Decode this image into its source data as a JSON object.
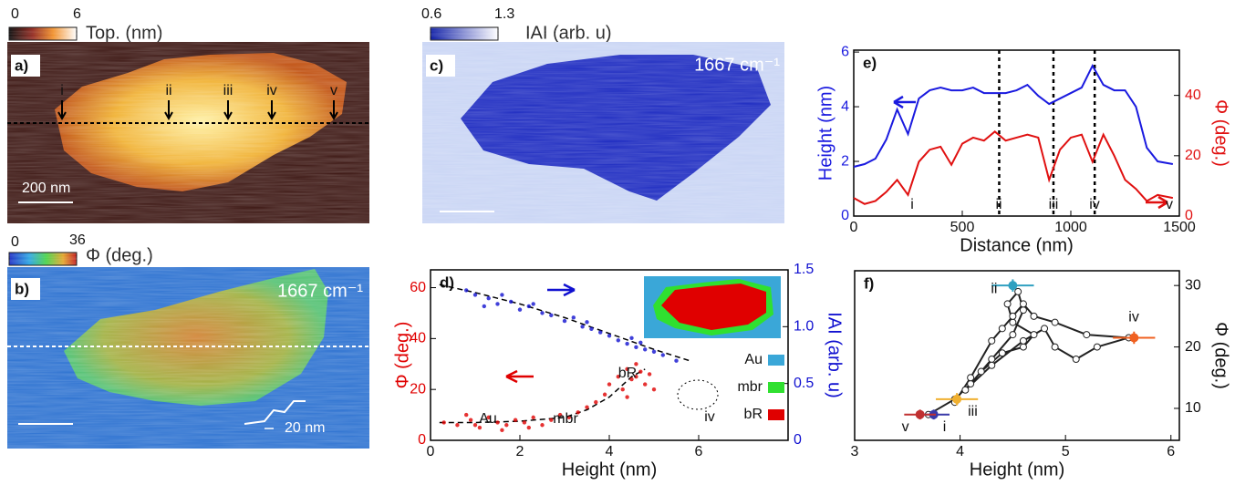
{
  "panels": {
    "a": {
      "label": "a)",
      "colorbar": {
        "min": 0,
        "max": 6,
        "title": "Top. (nm)"
      },
      "markers": [
        "i",
        "ii",
        "iii",
        "iv",
        "v"
      ],
      "scale_bar": "200 nm"
    },
    "b": {
      "label": "b)",
      "colorbar": {
        "min": 0,
        "max": 36,
        "title": "Φ (deg.)"
      },
      "wavenumber": "1667 cm⁻¹",
      "scale_bar": "20 nm"
    },
    "c": {
      "label": "c)",
      "colorbar": {
        "min": 0.6,
        "max": 1.3,
        "title": "IAI (arb. u)"
      },
      "wavenumber": "1667 cm⁻¹"
    }
  },
  "chart_data": [
    {
      "type": "scatter",
      "label": "d)",
      "xlabel": "Height (nm)",
      "ylabel": "Φ (deg.)",
      "y2label": "IAI (arb. u)",
      "xlim": [
        0,
        8
      ],
      "xticks": [
        0,
        2,
        4,
        6
      ],
      "ylim": [
        0,
        67
      ],
      "yticks": [
        0,
        20,
        40,
        60
      ],
      "y2lim": [
        0,
        1.5
      ],
      "y2ticks": [
        0,
        0.5,
        {
          "value": 1,
          "label": "1.0"
        },
        1.5
      ],
      "series": [
        {
          "color": "#e00000",
          "x": [
            0.3,
            0.6,
            0.9,
            1.1,
            1.3,
            1.5,
            1.7,
            1.9,
            2.1,
            2.3,
            2.5,
            2.7,
            2.9,
            3.1,
            3.3,
            3.5,
            3.7,
            3.9,
            4.0,
            4.2,
            4.3,
            4.4,
            4.5,
            4.6,
            4.7,
            4.8,
            4.9,
            5.0,
            4.4,
            4.6,
            0.8,
            1.6,
            2.2,
            1.0
          ],
          "values": [
            7,
            6,
            8,
            5,
            9,
            7,
            6,
            8,
            7,
            9,
            6,
            8,
            10,
            9,
            11,
            13,
            15,
            18,
            22,
            25,
            20,
            28,
            24,
            30,
            27,
            22,
            26,
            20,
            17,
            25,
            10,
            4,
            5,
            6
          ]
        },
        {
          "color": "#1010d0",
          "axis": "y2",
          "x": [
            0.8,
            1.0,
            1.3,
            1.5,
            1.8,
            2.0,
            2.2,
            2.5,
            2.7,
            3.0,
            3.2,
            3.4,
            3.6,
            3.8,
            4.0,
            4.2,
            4.4,
            4.6,
            4.8,
            5.0,
            5.2,
            5.5,
            1.6,
            2.3,
            4.5,
            4.7,
            1.2,
            3.5
          ],
          "values": [
            1.32,
            1.28,
            1.25,
            1.2,
            1.22,
            1.15,
            1.18,
            1.12,
            1.1,
            1.05,
            1.08,
            1.0,
            0.98,
            0.95,
            0.92,
            0.88,
            0.85,
            0.82,
            0.8,
            0.78,
            0.75,
            0.7,
            1.28,
            1.2,
            0.9,
            0.86,
            1.18,
            1.04
          ]
        }
      ],
      "fits": [
        {
          "x": [
            0.2,
            1,
            2,
            3,
            3.5,
            4,
            4.5,
            4.8
          ],
          "values": [
            7,
            7,
            7.5,
            9,
            12,
            17,
            25,
            28
          ]
        },
        {
          "axis": "y2",
          "x": [
            0.2,
            1,
            2,
            3,
            4,
            5,
            5.8
          ],
          "values": [
            1.37,
            1.3,
            1.2,
            1.08,
            0.94,
            0.8,
            0.7
          ]
        }
      ],
      "annotations": [
        "Au",
        "mbr",
        "bR",
        "iv"
      ],
      "legend": [
        {
          "name": "Au",
          "color": "#3aa7d8"
        },
        {
          "name": "mbr",
          "color": "#30e030"
        },
        {
          "name": "bR",
          "color": "#e00000"
        }
      ]
    },
    {
      "type": "line",
      "label": "e)",
      "xlabel": "Distance (nm)",
      "ylabel": "Height (nm)",
      "y2label": "Φ (deg.)",
      "xlim": [
        0,
        1500
      ],
      "xticks": [
        0,
        500,
        1000,
        1500
      ],
      "ylim": [
        0,
        6.07
      ],
      "yticks": [
        0,
        2,
        4,
        6
      ],
      "y2lim": [
        0,
        55
      ],
      "y2ticks": [
        0,
        20,
        40
      ],
      "x": [
        0,
        50,
        100,
        150,
        200,
        250,
        300,
        350,
        400,
        450,
        500,
        550,
        600,
        650,
        700,
        750,
        800,
        850,
        900,
        950,
        1000,
        1050,
        1100,
        1150,
        1200,
        1250,
        1300,
        1350,
        1400,
        1470
      ],
      "series": [
        {
          "color": "#1a1adf",
          "values": [
            1.8,
            1.9,
            2.1,
            2.8,
            3.9,
            3.0,
            4.3,
            4.6,
            4.7,
            4.6,
            4.6,
            4.7,
            4.5,
            4.5,
            4.5,
            4.6,
            4.8,
            4.4,
            4.1,
            4.3,
            4.5,
            4.7,
            5.5,
            4.8,
            4.6,
            4.6,
            4.0,
            2.5,
            2.0,
            1.9
          ]
        },
        {
          "color": "#e01010",
          "axis": "y2",
          "values": [
            6,
            4,
            5,
            8,
            12,
            7,
            18,
            22,
            23,
            17,
            24,
            26,
            25,
            28,
            25,
            26,
            27,
            26,
            12,
            22,
            26,
            27,
            18,
            27,
            20,
            12,
            9,
            5,
            7,
            6
          ]
        }
      ],
      "dashed_lines": [
        670,
        920,
        1110
      ],
      "section_labels": [
        "i",
        "ii",
        "iii",
        "iv",
        "v"
      ]
    },
    {
      "type": "scatter",
      "label": "f)",
      "xlabel": "Height (nm)",
      "y2label": "Φ (deg.)",
      "xlim": [
        3,
        6.08
      ],
      "xticks": [
        3,
        4,
        5,
        6
      ],
      "y2lim": [
        4.8,
        32.4
      ],
      "y2ticks": [
        10,
        20,
        30
      ],
      "series": [
        {
          "color": "#222222",
          "axis": "y2",
          "connected": true,
          "x": [
            3.7,
            3.95,
            4.1,
            4.3,
            4.5,
            4.6,
            4.55,
            4.45,
            4.5,
            4.7,
            4.6,
            4.4,
            4.2,
            4.05,
            4.3,
            4.6,
            4.8,
            4.9,
            5.1,
            5.3,
            5.6,
            5.2,
            4.9,
            4.7,
            4.6,
            4.5,
            4.4,
            4.3,
            4.1,
            3.95
          ],
          "values": [
            9,
            11.5,
            14,
            18,
            22,
            26,
            29,
            27,
            24,
            22,
            20,
            19,
            16,
            13,
            17,
            21,
            23,
            20,
            18,
            20,
            21.5,
            22,
            24,
            25,
            27,
            25,
            23,
            21,
            15,
            11
          ]
        }
      ],
      "points": [
        {
          "label": "i",
          "x": 3.75,
          "y": 9,
          "xerr": 0.15,
          "yerr": 0.8,
          "color": "#3a3aa8"
        },
        {
          "label": "ii",
          "x": 4.5,
          "y": 30,
          "xerr": 0.2,
          "yerr": 1,
          "color": "#30a0c0"
        },
        {
          "label": "iii",
          "x": 3.97,
          "y": 11.5,
          "xerr": 0.2,
          "yerr": 1,
          "color": "#f0b030"
        },
        {
          "label": "iv",
          "x": 5.65,
          "y": 21.5,
          "xerr": 0.2,
          "yerr": 1,
          "color": "#f06020"
        },
        {
          "label": "v",
          "x": 3.62,
          "y": 9,
          "xerr": 0.15,
          "yerr": 0.8,
          "color": "#c03030"
        }
      ]
    }
  ]
}
